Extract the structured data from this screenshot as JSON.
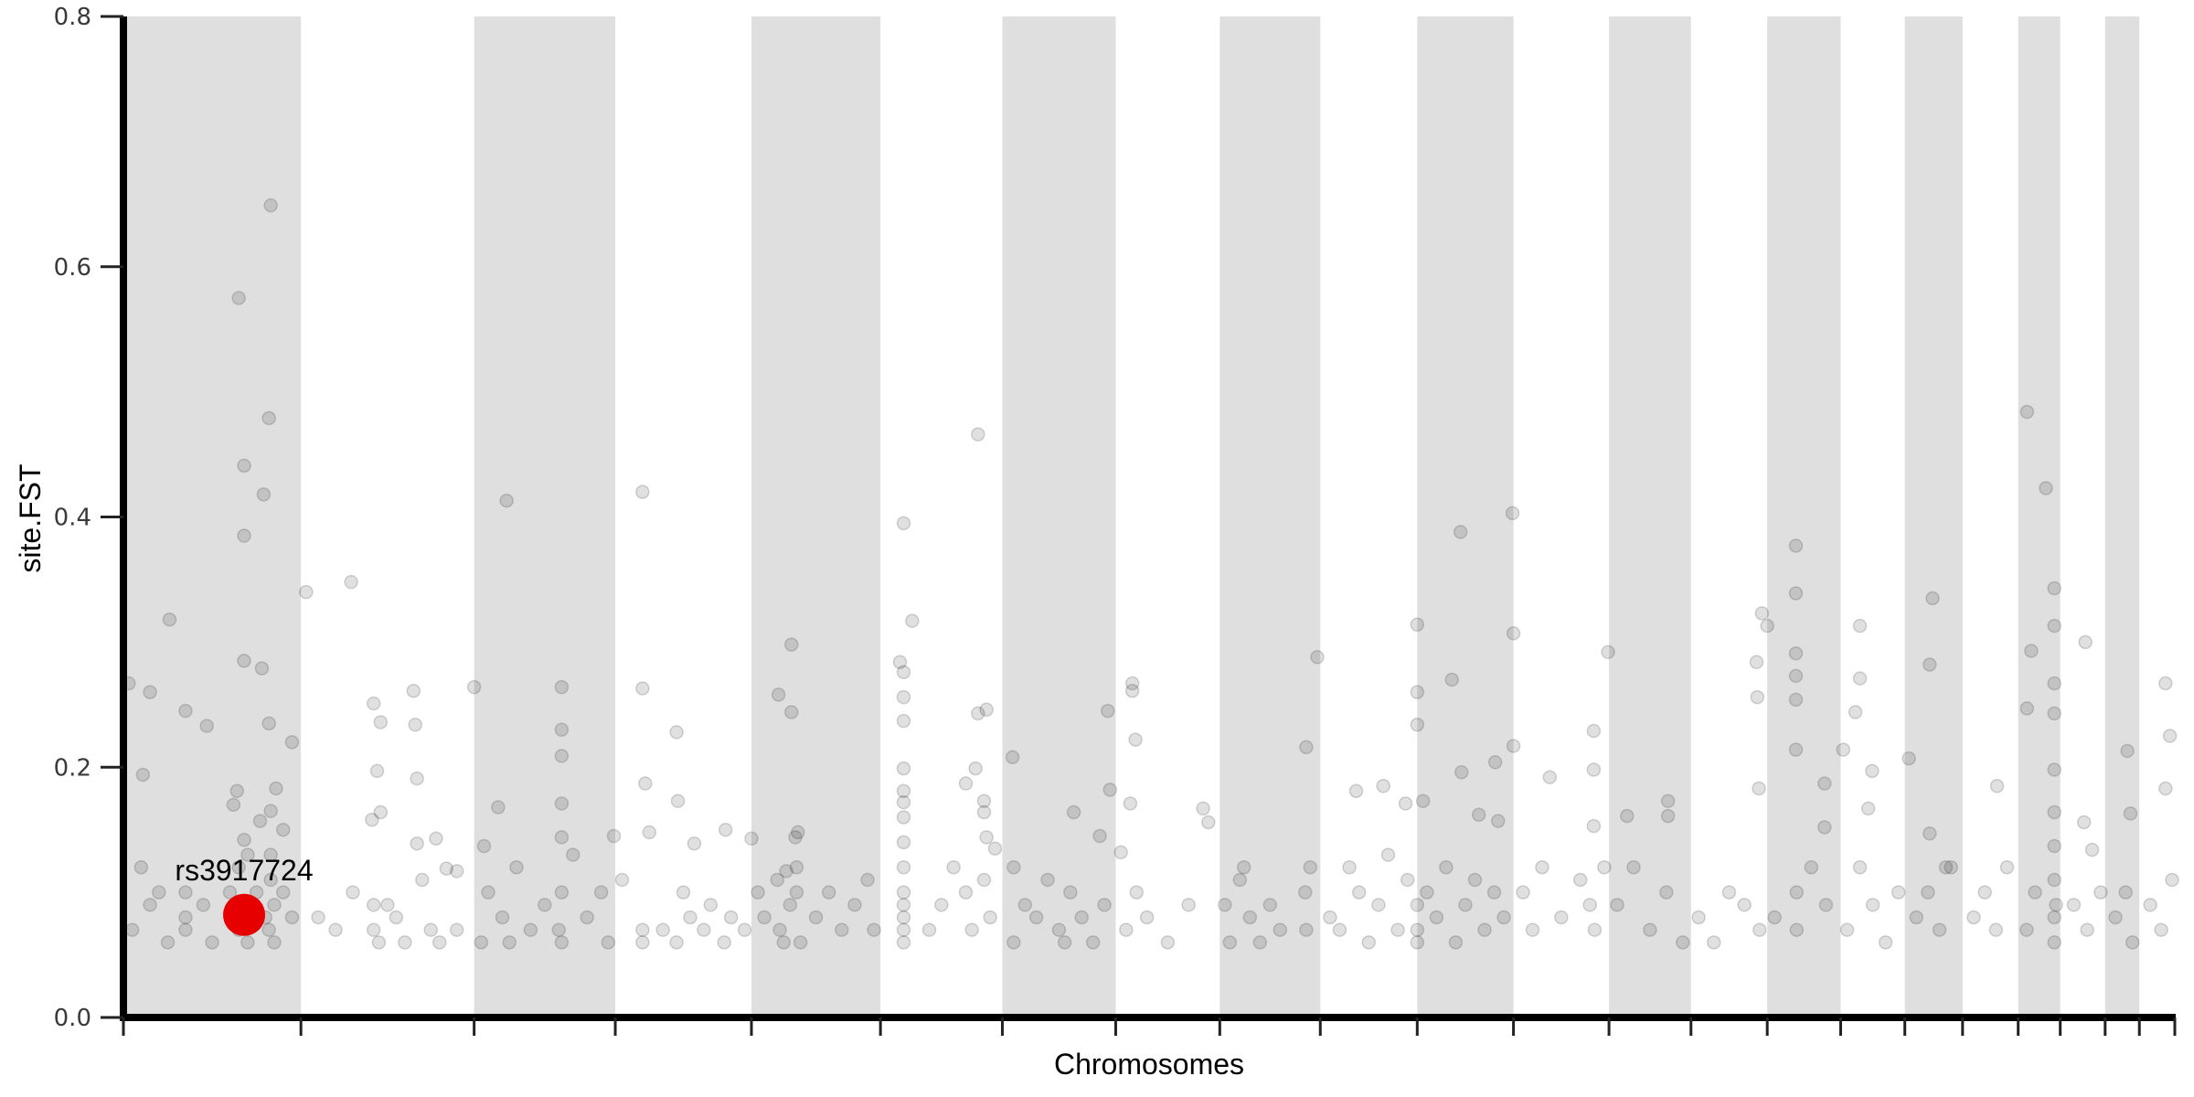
{
  "chart_data": {
    "type": "scatter",
    "subtype": "manhattan",
    "title": "",
    "xlabel": "Chromosomes",
    "ylabel": "site.FST",
    "ylim": [
      0,
      0.8
    ],
    "yticks": [
      "0.0",
      "0.2",
      "0.4",
      "0.6",
      "0.8"
    ],
    "ytick_values": [
      0,
      0.2,
      0.4,
      0.6,
      0.8
    ],
    "grid": false,
    "legend": "none",
    "colors": {
      "band": "#dfdfdf",
      "point": "#000000",
      "highlight": "#e60000"
    },
    "point_opacity": 0.12,
    "chromosome_lengths_mb": [
      249,
      243,
      198,
      191,
      181,
      171,
      159,
      146,
      141,
      136,
      135,
      134,
      115,
      107,
      103,
      90,
      81,
      78,
      59,
      63,
      48,
      51
    ],
    "alternating_bands": "odd chromosomes shaded",
    "point_format": "[position fraction within chromosome, FST]",
    "points": [
      [
        [
          0.83,
          0.649
        ],
        [
          0.65,
          0.575
        ],
        [
          0.82,
          0.479
        ],
        [
          0.68,
          0.441
        ],
        [
          0.79,
          0.418
        ],
        [
          0.68,
          0.385
        ],
        [
          0.26,
          0.318
        ],
        [
          0.68,
          0.285
        ],
        [
          0.78,
          0.279
        ],
        [
          0.03,
          0.267
        ],
        [
          0.15,
          0.26
        ],
        [
          0.35,
          0.245
        ],
        [
          0.47,
          0.233
        ],
        [
          0.82,
          0.235
        ],
        [
          0.95,
          0.22
        ],
        [
          0.11,
          0.194
        ],
        [
          0.64,
          0.181
        ],
        [
          0.86,
          0.183
        ],
        [
          0.77,
          0.157
        ],
        [
          0.68,
          0.142
        ],
        [
          0.05,
          0.07
        ],
        [
          0.1,
          0.12
        ],
        [
          0.15,
          0.09
        ],
        [
          0.2,
          0.1
        ],
        [
          0.25,
          0.06
        ],
        [
          0.35,
          0.08
        ],
        [
          0.35,
          0.1
        ],
        [
          0.35,
          0.07
        ],
        [
          0.45,
          0.09
        ],
        [
          0.5,
          0.06
        ],
        [
          0.6,
          0.1
        ],
        [
          0.65,
          0.12
        ],
        [
          0.65,
          0.07
        ],
        [
          0.7,
          0.06
        ],
        [
          0.75,
          0.1
        ],
        [
          0.8,
          0.08
        ],
        [
          0.82,
          0.07
        ],
        [
          0.85,
          0.06
        ],
        [
          0.85,
          0.09
        ],
        [
          0.83,
          0.11
        ],
        [
          0.83,
          0.13
        ],
        [
          0.9,
          0.1
        ],
        [
          0.95,
          0.08
        ],
        [
          0.9,
          0.15
        ],
        [
          0.7,
          0.13
        ],
        [
          0.83,
          0.165
        ],
        [
          0.62,
          0.17
        ]
      ],
      [
        [
          0.03,
          0.34
        ],
        [
          0.29,
          0.348
        ],
        [
          0.42,
          0.251
        ],
        [
          0.65,
          0.261
        ],
        [
          0.46,
          0.236
        ],
        [
          0.66,
          0.234
        ],
        [
          0.44,
          0.197
        ],
        [
          0.67,
          0.191
        ],
        [
          0.41,
          0.158
        ],
        [
          0.46,
          0.164
        ],
        [
          0.78,
          0.143
        ],
        [
          0.67,
          0.139
        ],
        [
          0.84,
          0.119
        ],
        [
          0.9,
          0.117
        ],
        [
          0.1,
          0.08
        ],
        [
          0.2,
          0.07
        ],
        [
          0.3,
          0.1
        ],
        [
          0.42,
          0.07
        ],
        [
          0.45,
          0.06
        ],
        [
          0.5,
          0.09
        ],
        [
          0.55,
          0.08
        ],
        [
          0.6,
          0.06
        ],
        [
          0.7,
          0.11
        ],
        [
          0.75,
          0.07
        ],
        [
          0.8,
          0.06
        ],
        [
          0.9,
          0.07
        ],
        [
          0.42,
          0.09
        ]
      ],
      [
        [
          0.0,
          0.264
        ],
        [
          0.23,
          0.413
        ],
        [
          0.62,
          0.264
        ],
        [
          0.62,
          0.23
        ],
        [
          0.62,
          0.209
        ],
        [
          0.17,
          0.168
        ],
        [
          0.62,
          0.171
        ],
        [
          0.62,
          0.144
        ],
        [
          0.07,
          0.137
        ],
        [
          0.99,
          0.145
        ],
        [
          0.05,
          0.06
        ],
        [
          0.1,
          0.1
        ],
        [
          0.2,
          0.08
        ],
        [
          0.25,
          0.06
        ],
        [
          0.3,
          0.12
        ],
        [
          0.4,
          0.07
        ],
        [
          0.5,
          0.09
        ],
        [
          0.6,
          0.07
        ],
        [
          0.62,
          0.1
        ],
        [
          0.62,
          0.06
        ],
        [
          0.7,
          0.13
        ],
        [
          0.8,
          0.08
        ],
        [
          0.9,
          0.1
        ],
        [
          0.95,
          0.06
        ]
      ],
      [
        [
          0.2,
          0.42
        ],
        [
          0.2,
          0.263
        ],
        [
          0.22,
          0.187
        ],
        [
          0.45,
          0.228
        ],
        [
          0.46,
          0.173
        ],
        [
          0.25,
          0.148
        ],
        [
          0.58,
          0.139
        ],
        [
          0.81,
          0.15
        ],
        [
          0.05,
          0.11
        ],
        [
          0.2,
          0.07
        ],
        [
          0.2,
          0.06
        ],
        [
          0.35,
          0.07
        ],
        [
          0.45,
          0.06
        ],
        [
          0.5,
          0.1
        ],
        [
          0.55,
          0.08
        ],
        [
          0.65,
          0.07
        ],
        [
          0.7,
          0.09
        ],
        [
          0.8,
          0.06
        ],
        [
          0.85,
          0.08
        ],
        [
          0.95,
          0.07
        ]
      ],
      [
        [
          0.31,
          0.298
        ],
        [
          0.21,
          0.258
        ],
        [
          0.31,
          0.244
        ],
        [
          0.34,
          0.144
        ],
        [
          0.36,
          0.148
        ],
        [
          0.27,
          0.117
        ],
        [
          0.0,
          0.143
        ],
        [
          0.05,
          0.1
        ],
        [
          0.1,
          0.08
        ],
        [
          0.2,
          0.11
        ],
        [
          0.22,
          0.07
        ],
        [
          0.25,
          0.06
        ],
        [
          0.3,
          0.09
        ],
        [
          0.35,
          0.1
        ],
        [
          0.35,
          0.12
        ],
        [
          0.38,
          0.06
        ],
        [
          0.5,
          0.08
        ],
        [
          0.6,
          0.1
        ],
        [
          0.7,
          0.07
        ],
        [
          0.8,
          0.09
        ],
        [
          0.9,
          0.11
        ],
        [
          0.95,
          0.07
        ]
      ],
      [
        [
          0.19,
          0.395
        ],
        [
          0.26,
          0.317
        ],
        [
          0.16,
          0.284
        ],
        [
          0.19,
          0.276
        ],
        [
          0.19,
          0.256
        ],
        [
          0.19,
          0.237
        ],
        [
          0.19,
          0.199
        ],
        [
          0.19,
          0.181
        ],
        [
          0.19,
          0.172
        ],
        [
          0.19,
          0.16
        ],
        [
          0.19,
          0.14
        ],
        [
          0.19,
          0.12
        ],
        [
          0.19,
          0.1
        ],
        [
          0.19,
          0.09
        ],
        [
          0.19,
          0.08
        ],
        [
          0.19,
          0.07
        ],
        [
          0.19,
          0.06
        ],
        [
          0.8,
          0.466
        ],
        [
          0.87,
          0.246
        ],
        [
          0.8,
          0.243
        ],
        [
          0.7,
          0.187
        ],
        [
          0.78,
          0.199
        ],
        [
          0.85,
          0.173
        ],
        [
          0.85,
          0.164
        ],
        [
          0.87,
          0.144
        ],
        [
          0.94,
          0.135
        ],
        [
          0.4,
          0.07
        ],
        [
          0.5,
          0.09
        ],
        [
          0.6,
          0.12
        ],
        [
          0.7,
          0.1
        ],
        [
          0.75,
          0.07
        ],
        [
          0.85,
          0.11
        ],
        [
          0.9,
          0.08
        ]
      ],
      [
        [
          0.09,
          0.208
        ],
        [
          0.93,
          0.245
        ],
        [
          0.95,
          0.182
        ],
        [
          0.63,
          0.164
        ],
        [
          0.86,
          0.145
        ],
        [
          0.1,
          0.06
        ],
        [
          0.1,
          0.12
        ],
        [
          0.2,
          0.09
        ],
        [
          0.3,
          0.08
        ],
        [
          0.4,
          0.11
        ],
        [
          0.5,
          0.07
        ],
        [
          0.55,
          0.06
        ],
        [
          0.6,
          0.1
        ],
        [
          0.7,
          0.08
        ],
        [
          0.8,
          0.06
        ],
        [
          0.9,
          0.09
        ]
      ],
      [
        [
          0.16,
          0.267
        ],
        [
          0.16,
          0.261
        ],
        [
          0.19,
          0.222
        ],
        [
          0.14,
          0.171
        ],
        [
          0.05,
          0.132
        ],
        [
          0.84,
          0.167
        ],
        [
          0.89,
          0.156
        ],
        [
          0.1,
          0.07
        ],
        [
          0.2,
          0.1
        ],
        [
          0.3,
          0.08
        ],
        [
          0.5,
          0.06
        ],
        [
          0.7,
          0.09
        ]
      ],
      [
        [
          0.97,
          0.288
        ],
        [
          0.86,
          0.216
        ],
        [
          0.24,
          0.12
        ],
        [
          0.05,
          0.09
        ],
        [
          0.1,
          0.06
        ],
        [
          0.2,
          0.11
        ],
        [
          0.3,
          0.08
        ],
        [
          0.4,
          0.06
        ],
        [
          0.5,
          0.09
        ],
        [
          0.6,
          0.07
        ],
        [
          0.85,
          0.1
        ],
        [
          0.86,
          0.07
        ],
        [
          0.9,
          0.12
        ]
      ],
      [
        [
          0.37,
          0.181
        ],
        [
          0.65,
          0.185
        ],
        [
          0.88,
          0.171
        ],
        [
          0.1,
          0.08
        ],
        [
          0.2,
          0.07
        ],
        [
          0.3,
          0.12
        ],
        [
          0.4,
          0.1
        ],
        [
          0.5,
          0.06
        ],
        [
          0.6,
          0.09
        ],
        [
          0.7,
          0.13
        ],
        [
          0.8,
          0.07
        ],
        [
          0.9,
          0.11
        ]
      ],
      [
        [
          0.0,
          0.314
        ],
        [
          0.0,
          0.26
        ],
        [
          0.0,
          0.234
        ],
        [
          0.36,
          0.27
        ],
        [
          0.45,
          0.388
        ],
        [
          0.99,
          0.403
        ],
        [
          1.0,
          0.307
        ],
        [
          1.0,
          0.217
        ],
        [
          0.81,
          0.204
        ],
        [
          0.06,
          0.173
        ],
        [
          0.46,
          0.196
        ],
        [
          0.64,
          0.162
        ],
        [
          0.84,
          0.157
        ],
        [
          0.0,
          0.07
        ],
        [
          0.0,
          0.09
        ],
        [
          0.0,
          0.06
        ],
        [
          0.1,
          0.1
        ],
        [
          0.2,
          0.08
        ],
        [
          0.3,
          0.12
        ],
        [
          0.4,
          0.06
        ],
        [
          0.5,
          0.09
        ],
        [
          0.6,
          0.11
        ],
        [
          0.7,
          0.07
        ],
        [
          0.8,
          0.1
        ],
        [
          0.9,
          0.08
        ]
      ],
      [
        [
          0.99,
          0.292
        ],
        [
          0.84,
          0.229
        ],
        [
          0.84,
          0.198
        ],
        [
          0.38,
          0.192
        ],
        [
          0.84,
          0.153
        ],
        [
          0.1,
          0.1
        ],
        [
          0.2,
          0.07
        ],
        [
          0.3,
          0.12
        ],
        [
          0.5,
          0.08
        ],
        [
          0.7,
          0.11
        ],
        [
          0.8,
          0.09
        ],
        [
          0.85,
          0.07
        ],
        [
          0.95,
          0.12
        ]
      ],
      [
        [
          0.22,
          0.161
        ],
        [
          0.72,
          0.173
        ],
        [
          0.72,
          0.161
        ],
        [
          0.1,
          0.09
        ],
        [
          0.3,
          0.12
        ],
        [
          0.5,
          0.07
        ],
        [
          0.7,
          0.1
        ],
        [
          0.9,
          0.06
        ]
      ],
      [
        [
          0.93,
          0.323
        ],
        [
          0.86,
          0.284
        ],
        [
          0.87,
          0.256
        ],
        [
          0.89,
          0.183
        ],
        [
          0.1,
          0.08
        ],
        [
          0.3,
          0.06
        ],
        [
          0.5,
          0.1
        ],
        [
          0.7,
          0.09
        ],
        [
          0.9,
          0.07
        ]
      ],
      [
        [
          0.39,
          0.377
        ],
        [
          0.39,
          0.339
        ],
        [
          0.39,
          0.291
        ],
        [
          0.39,
          0.273
        ],
        [
          0.39,
          0.254
        ],
        [
          0.39,
          0.214
        ],
        [
          0.0,
          0.313
        ],
        [
          0.78,
          0.187
        ],
        [
          0.78,
          0.152
        ],
        [
          0.1,
          0.08
        ],
        [
          0.4,
          0.07
        ],
        [
          0.4,
          0.1
        ],
        [
          0.6,
          0.12
        ],
        [
          0.8,
          0.09
        ]
      ],
      [
        [
          0.3,
          0.313
        ],
        [
          0.3,
          0.271
        ],
        [
          0.23,
          0.244
        ],
        [
          0.04,
          0.214
        ],
        [
          0.43,
          0.167
        ],
        [
          0.49,
          0.197
        ],
        [
          0.1,
          0.07
        ],
        [
          0.3,
          0.12
        ],
        [
          0.5,
          0.09
        ],
        [
          0.7,
          0.06
        ],
        [
          0.9,
          0.1
        ]
      ],
      [
        [
          0.48,
          0.335
        ],
        [
          0.43,
          0.282
        ],
        [
          0.07,
          0.207
        ],
        [
          0.43,
          0.147
        ],
        [
          0.71,
          0.12
        ],
        [
          0.2,
          0.08
        ],
        [
          0.4,
          0.1
        ],
        [
          0.6,
          0.07
        ],
        [
          0.8,
          0.12
        ]
      ],
      [
        [
          0.62,
          0.185
        ],
        [
          0.2,
          0.08
        ],
        [
          0.4,
          0.1
        ],
        [
          0.6,
          0.07
        ],
        [
          0.8,
          0.12
        ]
      ],
      [
        [
          0.21,
          0.484
        ],
        [
          0.66,
          0.423
        ],
        [
          0.86,
          0.343
        ],
        [
          0.86,
          0.313
        ],
        [
          0.86,
          0.267
        ],
        [
          0.86,
          0.243
        ],
        [
          0.86,
          0.198
        ],
        [
          0.31,
          0.293
        ],
        [
          0.21,
          0.247
        ],
        [
          0.86,
          0.164
        ],
        [
          0.86,
          0.137
        ],
        [
          0.2,
          0.07
        ],
        [
          0.4,
          0.1
        ],
        [
          0.86,
          0.08
        ],
        [
          0.86,
          0.06
        ],
        [
          0.86,
          0.11
        ],
        [
          0.9,
          0.09
        ]
      ],
      [
        [
          0.56,
          0.3
        ],
        [
          0.53,
          0.156
        ],
        [
          0.71,
          0.134
        ],
        [
          0.3,
          0.09
        ],
        [
          0.6,
          0.07
        ],
        [
          0.9,
          0.1
        ]
      ],
      [
        [
          0.65,
          0.213
        ],
        [
          0.74,
          0.163
        ],
        [
          0.3,
          0.08
        ],
        [
          0.6,
          0.1
        ],
        [
          0.8,
          0.06
        ]
      ],
      [
        [
          0.72,
          0.267
        ],
        [
          0.84,
          0.225
        ],
        [
          0.72,
          0.183
        ],
        [
          0.3,
          0.09
        ],
        [
          0.6,
          0.07
        ],
        [
          0.9,
          0.11
        ]
      ]
    ],
    "highlight": {
      "label": "rs3917724",
      "chromosome": 1,
      "position_fraction": 0.68,
      "fst": 0.082
    }
  }
}
